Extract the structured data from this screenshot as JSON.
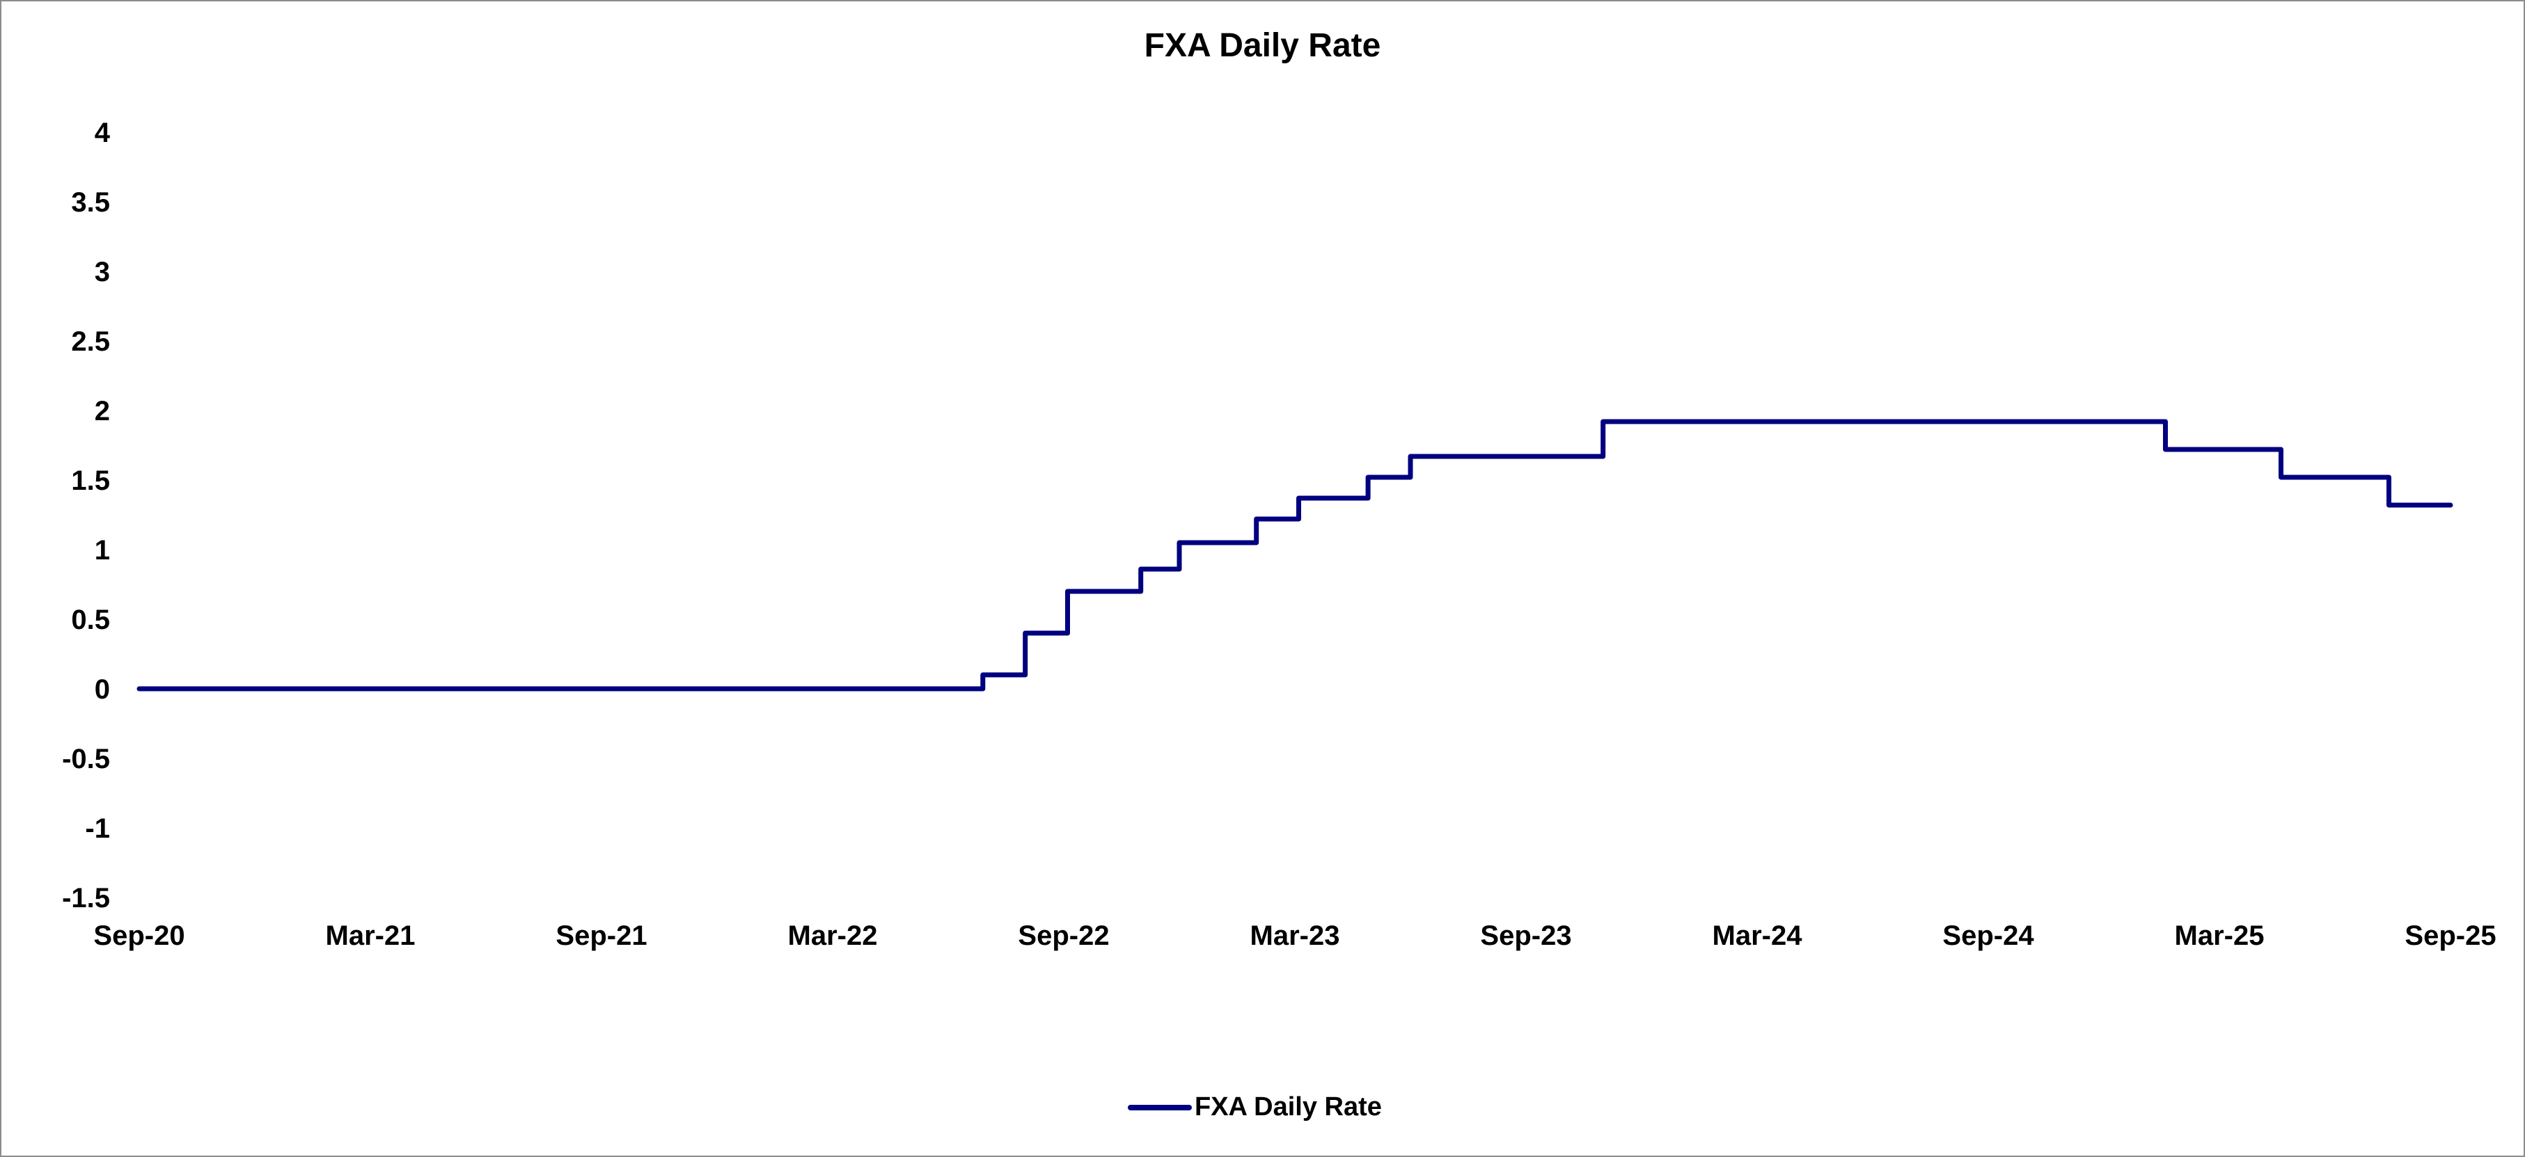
{
  "chart_data": {
    "type": "line",
    "title": "FXA Daily Rate",
    "xlabel": "",
    "ylabel": "",
    "ylim": [
      -1.5,
      4
    ],
    "yticks": [
      4,
      3.5,
      3,
      2.5,
      2,
      1.5,
      1,
      0.5,
      0,
      -0.5,
      -1,
      -1.5
    ],
    "ytick_labels": [
      "4",
      "3.5",
      "3",
      "2.5",
      "2",
      "1.5",
      "1",
      "0.5",
      "0",
      "-0.5",
      "-1",
      "-1.5"
    ],
    "xlim": [
      0,
      60
    ],
    "xticks": [
      0,
      6,
      12,
      18,
      24,
      30,
      36,
      42,
      48,
      54,
      60
    ],
    "xtick_labels": [
      "Sep-20",
      "Mar-21",
      "Sep-21",
      "Mar-22",
      "Sep-22",
      "Mar-23",
      "Sep-23",
      "Mar-24",
      "Sep-24",
      "Mar-25",
      "Sep-25"
    ],
    "x_units": "months since Sep-20",
    "grid": false,
    "legend_position": "bottom-center",
    "series": [
      {
        "name": "FXA Daily Rate",
        "color": "#000080",
        "step": "post",
        "x": [
          0,
          21.9,
          23.0,
          24.1,
          26.0,
          27.0,
          29.0,
          30.1,
          31.9,
          33.0,
          38.0,
          52.6,
          55.6,
          58.4,
          60.0
        ],
        "values": [
          0,
          0.1,
          0.4,
          0.7,
          0.86,
          1.05,
          1.22,
          1.37,
          1.52,
          1.67,
          1.92,
          1.72,
          1.52,
          1.32,
          1.32
        ]
      }
    ]
  }
}
